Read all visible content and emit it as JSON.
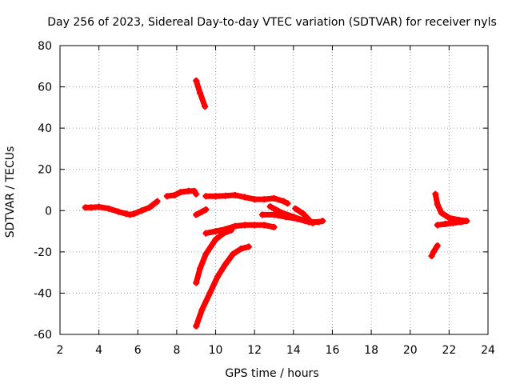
{
  "chart_data": {
    "type": "scatter",
    "title": "Day 256 of 2023, Sidereal Day-to-day VTEC variation (SDTVAR) for receiver nyls",
    "xlabel": "GPS time / hours",
    "ylabel": "SDTVAR / TECUs",
    "xlim": [
      2,
      24
    ],
    "ylim": [
      -60,
      80
    ],
    "x_ticks": [
      2,
      4,
      6,
      8,
      10,
      12,
      14,
      16,
      18,
      20,
      22,
      24
    ],
    "x_tick_labels": [
      "2",
      "4",
      "6",
      "8",
      "10",
      "12",
      "14",
      "16",
      "18",
      "20",
      "22",
      "24"
    ],
    "y_ticks": [
      -60,
      -40,
      -20,
      0,
      20,
      40,
      60,
      80
    ],
    "y_tick_labels": [
      "-60",
      "-40",
      "-20",
      "0",
      "20",
      "40",
      "60",
      "80"
    ],
    "grid": true,
    "legend": "none",
    "color": "#ff0000",
    "marker": "plus",
    "series": [
      {
        "name": "arc-1",
        "x": [
          3.3,
          3.6,
          4.0,
          4.5,
          5.0,
          5.4,
          5.6,
          5.8,
          6.2,
          6.6,
          7.0
        ],
        "y": [
          1.5,
          1.5,
          1.8,
          1.0,
          -0.5,
          -1.5,
          -2.0,
          -1.5,
          0.0,
          1.5,
          4.5
        ]
      },
      {
        "name": "arc-2",
        "x": [
          7.5,
          7.9,
          8.2,
          8.6,
          8.9,
          9.0
        ],
        "y": [
          7.0,
          7.5,
          9.0,
          9.5,
          9.5,
          8.0
        ]
      },
      {
        "name": "arc-3",
        "x": [
          9.0,
          9.2,
          9.45
        ],
        "y": [
          63.0,
          57.0,
          50.5
        ]
      },
      {
        "name": "arc-4",
        "x": [
          9.0,
          9.3,
          9.5
        ],
        "y": [
          -2.0,
          -0.5,
          0.5
        ]
      },
      {
        "name": "arc-5",
        "x": [
          9.5,
          10.0,
          10.5,
          11.0,
          11.5,
          12.0,
          12.5,
          13.0,
          13.5,
          13.7
        ],
        "y": [
          7.0,
          7.0,
          7.2,
          7.5,
          6.5,
          5.5,
          5.5,
          6.0,
          4.5,
          3.5
        ]
      },
      {
        "name": "arc-6",
        "x": [
          9.5,
          10.0,
          10.5,
          11.0,
          11.5,
          12.0,
          12.5,
          13.0
        ],
        "y": [
          -11.0,
          -10.0,
          -9.0,
          -7.5,
          -7.0,
          -7.0,
          -7.0,
          -8.0
        ]
      },
      {
        "name": "arc-7",
        "x": [
          9.0,
          9.2,
          9.5,
          10.0,
          10.4,
          10.8
        ],
        "y": [
          -35.0,
          -28.0,
          -21.0,
          -14.0,
          -11.0,
          -9.5
        ]
      },
      {
        "name": "arc-8",
        "x": [
          9.0,
          9.3,
          9.7,
          10.1,
          10.5,
          10.9,
          11.3,
          11.7
        ],
        "y": [
          -56.0,
          -48.0,
          -40.0,
          -32.0,
          -26.0,
          -21.0,
          -18.5,
          -17.5
        ]
      },
      {
        "name": "arc-9",
        "x": [
          12.4,
          13.0,
          13.6,
          14.2,
          14.8,
          15.3,
          15.5
        ],
        "y": [
          -2.0,
          -2.0,
          -3.0,
          -4.0,
          -5.5,
          -5.5,
          -5.0
        ]
      },
      {
        "name": "arc-10",
        "x": [
          12.8,
          13.4,
          14.0,
          14.6,
          15.0
        ],
        "y": [
          2.0,
          -1.0,
          -3.0,
          -5.0,
          -6.0
        ]
      },
      {
        "name": "arc-11",
        "x": [
          14.1,
          14.5,
          14.8
        ],
        "y": [
          1.0,
          -1.5,
          -4.5
        ]
      },
      {
        "name": "arc-12",
        "x": [
          21.3,
          21.4,
          21.6,
          22.0,
          22.5,
          22.9
        ],
        "y": [
          8.0,
          3.0,
          -1.0,
          -3.5,
          -4.5,
          -5.0
        ]
      },
      {
        "name": "arc-13",
        "x": [
          21.4,
          21.8,
          22.2,
          22.6,
          22.9
        ],
        "y": [
          -7.0,
          -6.5,
          -6.0,
          -5.5,
          -5.0
        ]
      },
      {
        "name": "arc-14",
        "x": [
          21.1,
          21.2,
          21.4
        ],
        "y": [
          -22.0,
          -20.0,
          -17.0
        ]
      }
    ]
  }
}
